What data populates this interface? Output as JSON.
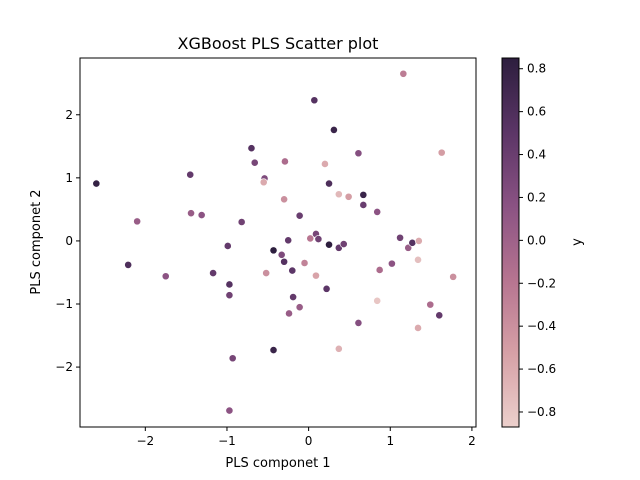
{
  "chart_data": {
    "type": "scatter",
    "title": "XGBoost PLS Scatter plot",
    "xlabel": "PLS componet 1",
    "ylabel": "PLS componet 2",
    "xlim": [
      -2.8,
      2.05
    ],
    "ylim": [
      -2.95,
      2.9
    ],
    "xticks": [
      -2,
      -1,
      0,
      1,
      2
    ],
    "xtick_labels": [
      "−2",
      "−1",
      "0",
      "1",
      "2"
    ],
    "yticks": [
      -2,
      -1,
      0,
      1,
      2
    ],
    "ytick_labels": [
      "−2",
      "−1",
      "0",
      "1",
      "2"
    ],
    "grid": false,
    "colorbar": {
      "label": "y",
      "range": [
        -0.87,
        0.85
      ],
      "ticks": [
        -0.8,
        -0.6,
        -0.4,
        -0.2,
        0.0,
        0.2,
        0.4,
        0.6,
        0.8
      ],
      "tick_labels": [
        "−0.8",
        "−0.6",
        "−0.4",
        "−0.2",
        "0.0",
        "0.2",
        "0.4",
        "0.6",
        "0.8"
      ],
      "colormap": [
        "#ecd0cc",
        "#d6a0a6",
        "#b67490",
        "#8a5283",
        "#5b3566",
        "#2d1e3e"
      ]
    },
    "points": [
      {
        "x": -2.6,
        "y": 0.91,
        "c": 0.8
      },
      {
        "x": -2.21,
        "y": -0.38,
        "c": 0.6
      },
      {
        "x": -2.1,
        "y": 0.31,
        "c": 0.05
      },
      {
        "x": -1.75,
        "y": -0.56,
        "c": 0.15
      },
      {
        "x": -1.45,
        "y": 1.05,
        "c": 0.45
      },
      {
        "x": -1.44,
        "y": 0.44,
        "c": 0.05
      },
      {
        "x": -1.31,
        "y": 0.41,
        "c": 0.15
      },
      {
        "x": -1.17,
        "y": -0.51,
        "c": 0.45
      },
      {
        "x": -0.99,
        "y": -0.08,
        "c": 0.45
      },
      {
        "x": -0.97,
        "y": -0.69,
        "c": 0.55
      },
      {
        "x": -0.97,
        "y": -0.86,
        "c": 0.35
      },
      {
        "x": -0.93,
        "y": -1.86,
        "c": 0.3
      },
      {
        "x": -0.97,
        "y": -2.69,
        "c": 0.15
      },
      {
        "x": -0.82,
        "y": 0.3,
        "c": 0.35
      },
      {
        "x": -0.7,
        "y": 1.47,
        "c": 0.55
      },
      {
        "x": -0.66,
        "y": 1.24,
        "c": 0.3
      },
      {
        "x": -0.54,
        "y": 0.99,
        "c": 0.25
      },
      {
        "x": -0.55,
        "y": 0.93,
        "c": -0.6
      },
      {
        "x": -0.52,
        "y": -0.51,
        "c": -0.4
      },
      {
        "x": -0.43,
        "y": -0.15,
        "c": 0.85
      },
      {
        "x": -0.43,
        "y": -1.73,
        "c": 0.75
      },
      {
        "x": -0.33,
        "y": -0.22,
        "c": 0.25
      },
      {
        "x": -0.3,
        "y": -0.33,
        "c": 0.55
      },
      {
        "x": -0.29,
        "y": 1.26,
        "c": -0.1
      },
      {
        "x": -0.3,
        "y": 0.66,
        "c": -0.4
      },
      {
        "x": -0.25,
        "y": 0.01,
        "c": 0.45
      },
      {
        "x": -0.24,
        "y": -1.15,
        "c": 0.05
      },
      {
        "x": -0.2,
        "y": -0.47,
        "c": 0.5
      },
      {
        "x": -0.19,
        "y": -0.89,
        "c": 0.45
      },
      {
        "x": -0.11,
        "y": -1.05,
        "c": 0.05
      },
      {
        "x": -0.11,
        "y": 0.4,
        "c": 0.4
      },
      {
        "x": -0.05,
        "y": -0.35,
        "c": -0.3
      },
      {
        "x": 0.02,
        "y": 0.04,
        "c": -0.2
      },
      {
        "x": 0.07,
        "y": 2.23,
        "c": 0.55
      },
      {
        "x": 0.09,
        "y": 0.11,
        "c": 0.3
      },
      {
        "x": 0.09,
        "y": -0.55,
        "c": -0.55
      },
      {
        "x": 0.12,
        "y": 0.03,
        "c": 0.35
      },
      {
        "x": 0.2,
        "y": 1.22,
        "c": -0.6
      },
      {
        "x": 0.22,
        "y": -0.76,
        "c": 0.5
      },
      {
        "x": 0.25,
        "y": 0.91,
        "c": 0.6
      },
      {
        "x": 0.25,
        "y": -0.06,
        "c": 0.85
      },
      {
        "x": 0.31,
        "y": 1.76,
        "c": 0.75
      },
      {
        "x": 0.37,
        "y": 0.74,
        "c": -0.7
      },
      {
        "x": 0.37,
        "y": -0.11,
        "c": 0.45
      },
      {
        "x": 0.37,
        "y": -1.71,
        "c": -0.65
      },
      {
        "x": 0.43,
        "y": -0.05,
        "c": 0.35
      },
      {
        "x": 0.49,
        "y": 0.7,
        "c": -0.5
      },
      {
        "x": 0.61,
        "y": 1.39,
        "c": 0.2
      },
      {
        "x": 0.61,
        "y": -1.3,
        "c": 0.2
      },
      {
        "x": 0.67,
        "y": 0.73,
        "c": 0.75
      },
      {
        "x": 0.67,
        "y": 0.57,
        "c": 0.4
      },
      {
        "x": 0.84,
        "y": 0.46,
        "c": 0.15
      },
      {
        "x": 0.84,
        "y": -0.95,
        "c": -0.8
      },
      {
        "x": 0.87,
        "y": -0.46,
        "c": -0.1
      },
      {
        "x": 1.02,
        "y": -0.36,
        "c": 0.15
      },
      {
        "x": 1.12,
        "y": 0.05,
        "c": 0.35
      },
      {
        "x": 1.16,
        "y": 2.65,
        "c": -0.25
      },
      {
        "x": 1.22,
        "y": -0.11,
        "c": 0.05
      },
      {
        "x": 1.27,
        "y": -0.03,
        "c": 0.55
      },
      {
        "x": 1.34,
        "y": -0.3,
        "c": -0.75
      },
      {
        "x": 1.35,
        "y": 0.0,
        "c": -0.6
      },
      {
        "x": 1.34,
        "y": -1.38,
        "c": -0.6
      },
      {
        "x": 1.49,
        "y": -1.01,
        "c": -0.1
      },
      {
        "x": 1.6,
        "y": -1.18,
        "c": 0.45
      },
      {
        "x": 1.63,
        "y": 1.4,
        "c": -0.5
      },
      {
        "x": 1.77,
        "y": -0.57,
        "c": -0.4
      }
    ]
  }
}
